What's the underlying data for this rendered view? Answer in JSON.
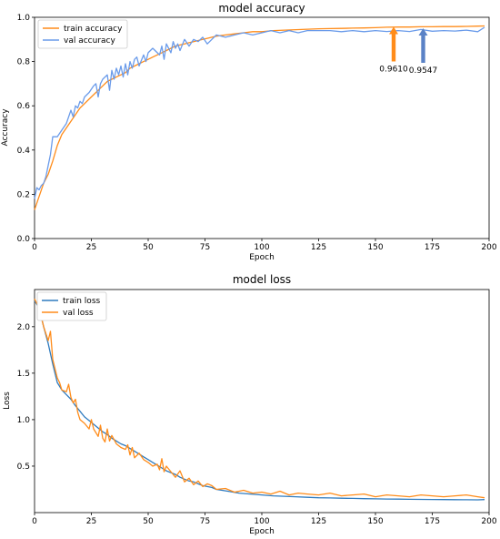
{
  "chart_data": [
    {
      "type": "line",
      "title": "model accuracy",
      "xlabel": "Epoch",
      "ylabel": "Accuracy",
      "xlim": [
        0,
        200
      ],
      "ylim": [
        0,
        1.0
      ],
      "xticks": [
        "0",
        "25",
        "50",
        "75",
        "100",
        "125",
        "150",
        "175",
        "200"
      ],
      "yticks": [
        "0.0",
        "0.2",
        "0.4",
        "0.6",
        "0.8",
        "1.0"
      ],
      "legend_position": "top-left",
      "series": [
        {
          "name": "train accuracy",
          "color": "#ff8c1a",
          "x": [
            0,
            2,
            4,
            6,
            8,
            10,
            12,
            14,
            16,
            18,
            20,
            22,
            24,
            26,
            28,
            30,
            32,
            34,
            36,
            38,
            40,
            42,
            44,
            46,
            48,
            50,
            52,
            54,
            56,
            58,
            60,
            62,
            64,
            66,
            68,
            70,
            72,
            74,
            76,
            78,
            80,
            84,
            88,
            92,
            96,
            100,
            105,
            110,
            115,
            120,
            125,
            130,
            135,
            140,
            145,
            150,
            155,
            160,
            165,
            170,
            175,
            180,
            185,
            190,
            195,
            198
          ],
          "y": [
            0.13,
            0.19,
            0.25,
            0.29,
            0.35,
            0.42,
            0.47,
            0.5,
            0.53,
            0.56,
            0.59,
            0.61,
            0.63,
            0.65,
            0.67,
            0.69,
            0.71,
            0.72,
            0.73,
            0.74,
            0.75,
            0.77,
            0.78,
            0.79,
            0.8,
            0.81,
            0.82,
            0.83,
            0.84,
            0.85,
            0.86,
            0.87,
            0.875,
            0.88,
            0.885,
            0.89,
            0.895,
            0.9,
            0.905,
            0.91,
            0.915,
            0.92,
            0.925,
            0.93,
            0.935,
            0.935,
            0.94,
            0.942,
            0.944,
            0.946,
            0.948,
            0.949,
            0.95,
            0.951,
            0.952,
            0.953,
            0.955,
            0.956,
            0.956,
            0.957,
            0.957,
            0.958,
            0.958,
            0.959,
            0.96,
            0.961
          ]
        },
        {
          "name": "val accuracy",
          "color": "#6a9bea",
          "x": [
            0,
            1,
            2,
            3,
            4,
            5,
            6,
            7,
            8,
            9,
            10,
            12,
            14,
            16,
            17,
            18,
            19,
            20,
            21,
            22,
            24,
            26,
            27,
            28,
            29,
            30,
            32,
            33,
            34,
            35,
            36,
            37,
            38,
            39,
            40,
            41,
            42,
            43,
            44,
            45,
            46,
            48,
            49,
            50,
            52,
            54,
            55,
            56,
            57,
            58,
            60,
            61,
            62,
            63,
            64,
            66,
            68,
            70,
            72,
            74,
            76,
            78,
            80,
            84,
            88,
            92,
            96,
            100,
            104,
            108,
            112,
            116,
            120,
            125,
            130,
            135,
            140,
            145,
            150,
            155,
            160,
            165,
            170,
            175,
            180,
            185,
            190,
            195,
            198
          ],
          "y": [
            0.18,
            0.23,
            0.22,
            0.24,
            0.25,
            0.28,
            0.33,
            0.38,
            0.46,
            0.46,
            0.46,
            0.49,
            0.52,
            0.58,
            0.55,
            0.6,
            0.59,
            0.62,
            0.61,
            0.64,
            0.66,
            0.69,
            0.7,
            0.64,
            0.7,
            0.72,
            0.74,
            0.67,
            0.76,
            0.72,
            0.77,
            0.74,
            0.78,
            0.73,
            0.79,
            0.74,
            0.8,
            0.77,
            0.81,
            0.82,
            0.78,
            0.83,
            0.8,
            0.84,
            0.86,
            0.84,
            0.83,
            0.87,
            0.81,
            0.88,
            0.84,
            0.89,
            0.86,
            0.88,
            0.85,
            0.9,
            0.87,
            0.9,
            0.89,
            0.91,
            0.88,
            0.9,
            0.92,
            0.91,
            0.92,
            0.93,
            0.92,
            0.93,
            0.94,
            0.93,
            0.94,
            0.93,
            0.94,
            0.94,
            0.94,
            0.935,
            0.94,
            0.935,
            0.94,
            0.936,
            0.94,
            0.936,
            0.945,
            0.937,
            0.94,
            0.938,
            0.942,
            0.935,
            0.9547
          ]
        }
      ],
      "annotations": [
        {
          "label": "0.9610",
          "x": 158,
          "y": 0.961,
          "color": "#ff8c1a"
        },
        {
          "label": "0.9547",
          "x": 171,
          "y": 0.9547,
          "color": "#5a82c6"
        }
      ]
    },
    {
      "type": "line",
      "title": "model loss",
      "xlabel": "Epoch",
      "ylabel": "Loss",
      "xlim": [
        0,
        200
      ],
      "ylim": [
        0,
        2.4
      ],
      "xticks": [
        "0",
        "25",
        "50",
        "75",
        "100",
        "125",
        "150",
        "175",
        "200"
      ],
      "yticks": [
        "0.5",
        "1.0",
        "1.5",
        "2.0"
      ],
      "legend_position": "top-left",
      "series": [
        {
          "name": "train loss",
          "color": "#2f7bbf",
          "x": [
            0,
            2,
            4,
            6,
            8,
            10,
            12,
            14,
            16,
            18,
            20,
            22,
            24,
            26,
            28,
            30,
            32,
            34,
            36,
            38,
            40,
            42,
            44,
            46,
            48,
            50,
            52,
            54,
            56,
            58,
            60,
            62,
            64,
            66,
            68,
            70,
            72,
            74,
            76,
            78,
            80,
            85,
            90,
            95,
            100,
            105,
            110,
            115,
            120,
            125,
            130,
            135,
            140,
            145,
            150,
            155,
            160,
            165,
            170,
            175,
            180,
            185,
            190,
            195,
            198
          ],
          "y": [
            2.28,
            2.2,
            2.0,
            1.82,
            1.6,
            1.4,
            1.32,
            1.27,
            1.22,
            1.15,
            1.09,
            1.03,
            0.99,
            0.95,
            0.91,
            0.87,
            0.84,
            0.8,
            0.77,
            0.74,
            0.72,
            0.69,
            0.66,
            0.63,
            0.6,
            0.57,
            0.54,
            0.51,
            0.48,
            0.45,
            0.43,
            0.41,
            0.38,
            0.36,
            0.34,
            0.33,
            0.31,
            0.29,
            0.28,
            0.27,
            0.25,
            0.23,
            0.21,
            0.2,
            0.19,
            0.18,
            0.175,
            0.17,
            0.165,
            0.16,
            0.158,
            0.155,
            0.153,
            0.15,
            0.148,
            0.146,
            0.145,
            0.143,
            0.142,
            0.141,
            0.14,
            0.139,
            0.138,
            0.137,
            0.14
          ]
        },
        {
          "name": "val loss",
          "color": "#ff8c1a",
          "x": [
            0,
            2,
            4,
            6,
            7,
            8,
            10,
            11,
            12,
            14,
            15,
            16,
            17,
            18,
            19,
            20,
            22,
            24,
            25,
            26,
            28,
            29,
            30,
            31,
            32,
            33,
            34,
            36,
            38,
            40,
            41,
            42,
            43,
            44,
            46,
            48,
            50,
            52,
            54,
            55,
            56,
            57,
            58,
            60,
            62,
            64,
            66,
            68,
            70,
            72,
            74,
            76,
            78,
            80,
            84,
            88,
            92,
            96,
            100,
            104,
            108,
            112,
            116,
            120,
            125,
            130,
            135,
            140,
            145,
            150,
            155,
            160,
            165,
            170,
            175,
            180,
            185,
            190,
            195,
            198
          ],
          "y": [
            2.3,
            2.2,
            2.0,
            1.85,
            1.95,
            1.65,
            1.45,
            1.4,
            1.32,
            1.3,
            1.38,
            1.24,
            1.18,
            1.22,
            1.08,
            1.0,
            0.96,
            0.9,
            1.0,
            0.9,
            0.82,
            0.94,
            0.8,
            0.76,
            0.9,
            0.77,
            0.83,
            0.74,
            0.7,
            0.68,
            0.73,
            0.62,
            0.7,
            0.59,
            0.64,
            0.57,
            0.54,
            0.5,
            0.52,
            0.46,
            0.58,
            0.44,
            0.5,
            0.44,
            0.38,
            0.45,
            0.33,
            0.37,
            0.3,
            0.34,
            0.28,
            0.31,
            0.29,
            0.25,
            0.26,
            0.22,
            0.24,
            0.21,
            0.22,
            0.2,
            0.23,
            0.19,
            0.21,
            0.2,
            0.19,
            0.21,
            0.18,
            0.19,
            0.2,
            0.17,
            0.19,
            0.18,
            0.17,
            0.19,
            0.18,
            0.17,
            0.18,
            0.19,
            0.17,
            0.16
          ]
        }
      ]
    }
  ]
}
